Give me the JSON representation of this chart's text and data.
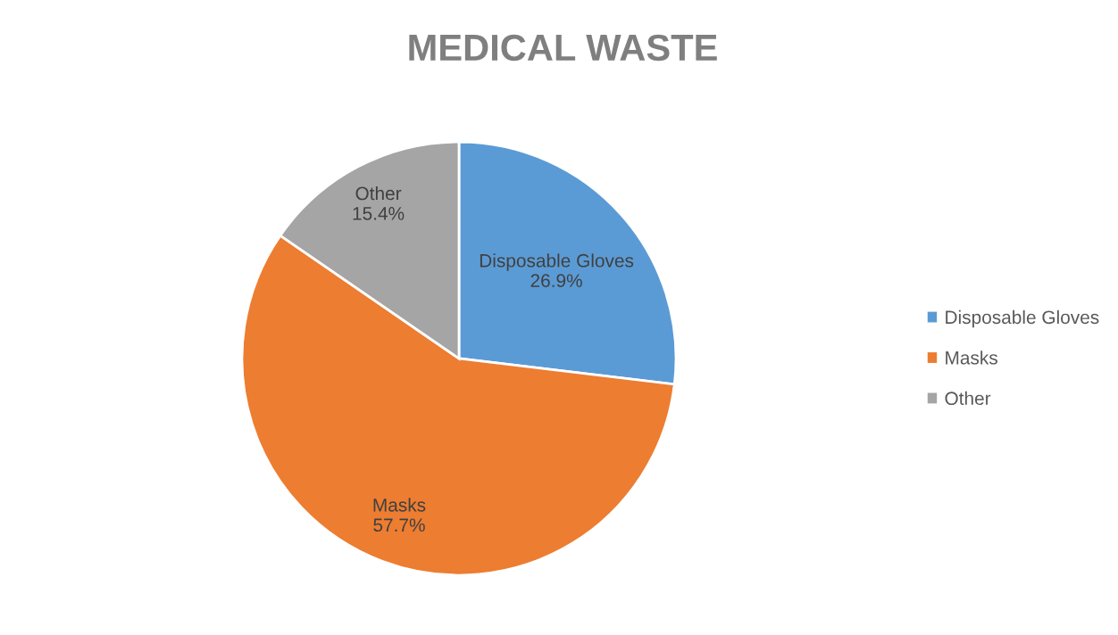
{
  "chart_data": {
    "type": "pie",
    "title": "MEDICAL WASTE",
    "categories": [
      "Disposable Gloves",
      "Masks",
      "Other"
    ],
    "values": [
      26.9,
      57.7,
      15.4
    ],
    "value_labels": [
      "26.9%",
      "57.7%",
      "15.4%"
    ],
    "colors": [
      "#5b9bd5",
      "#ed7d31",
      "#a5a5a5"
    ],
    "legend": "right"
  }
}
